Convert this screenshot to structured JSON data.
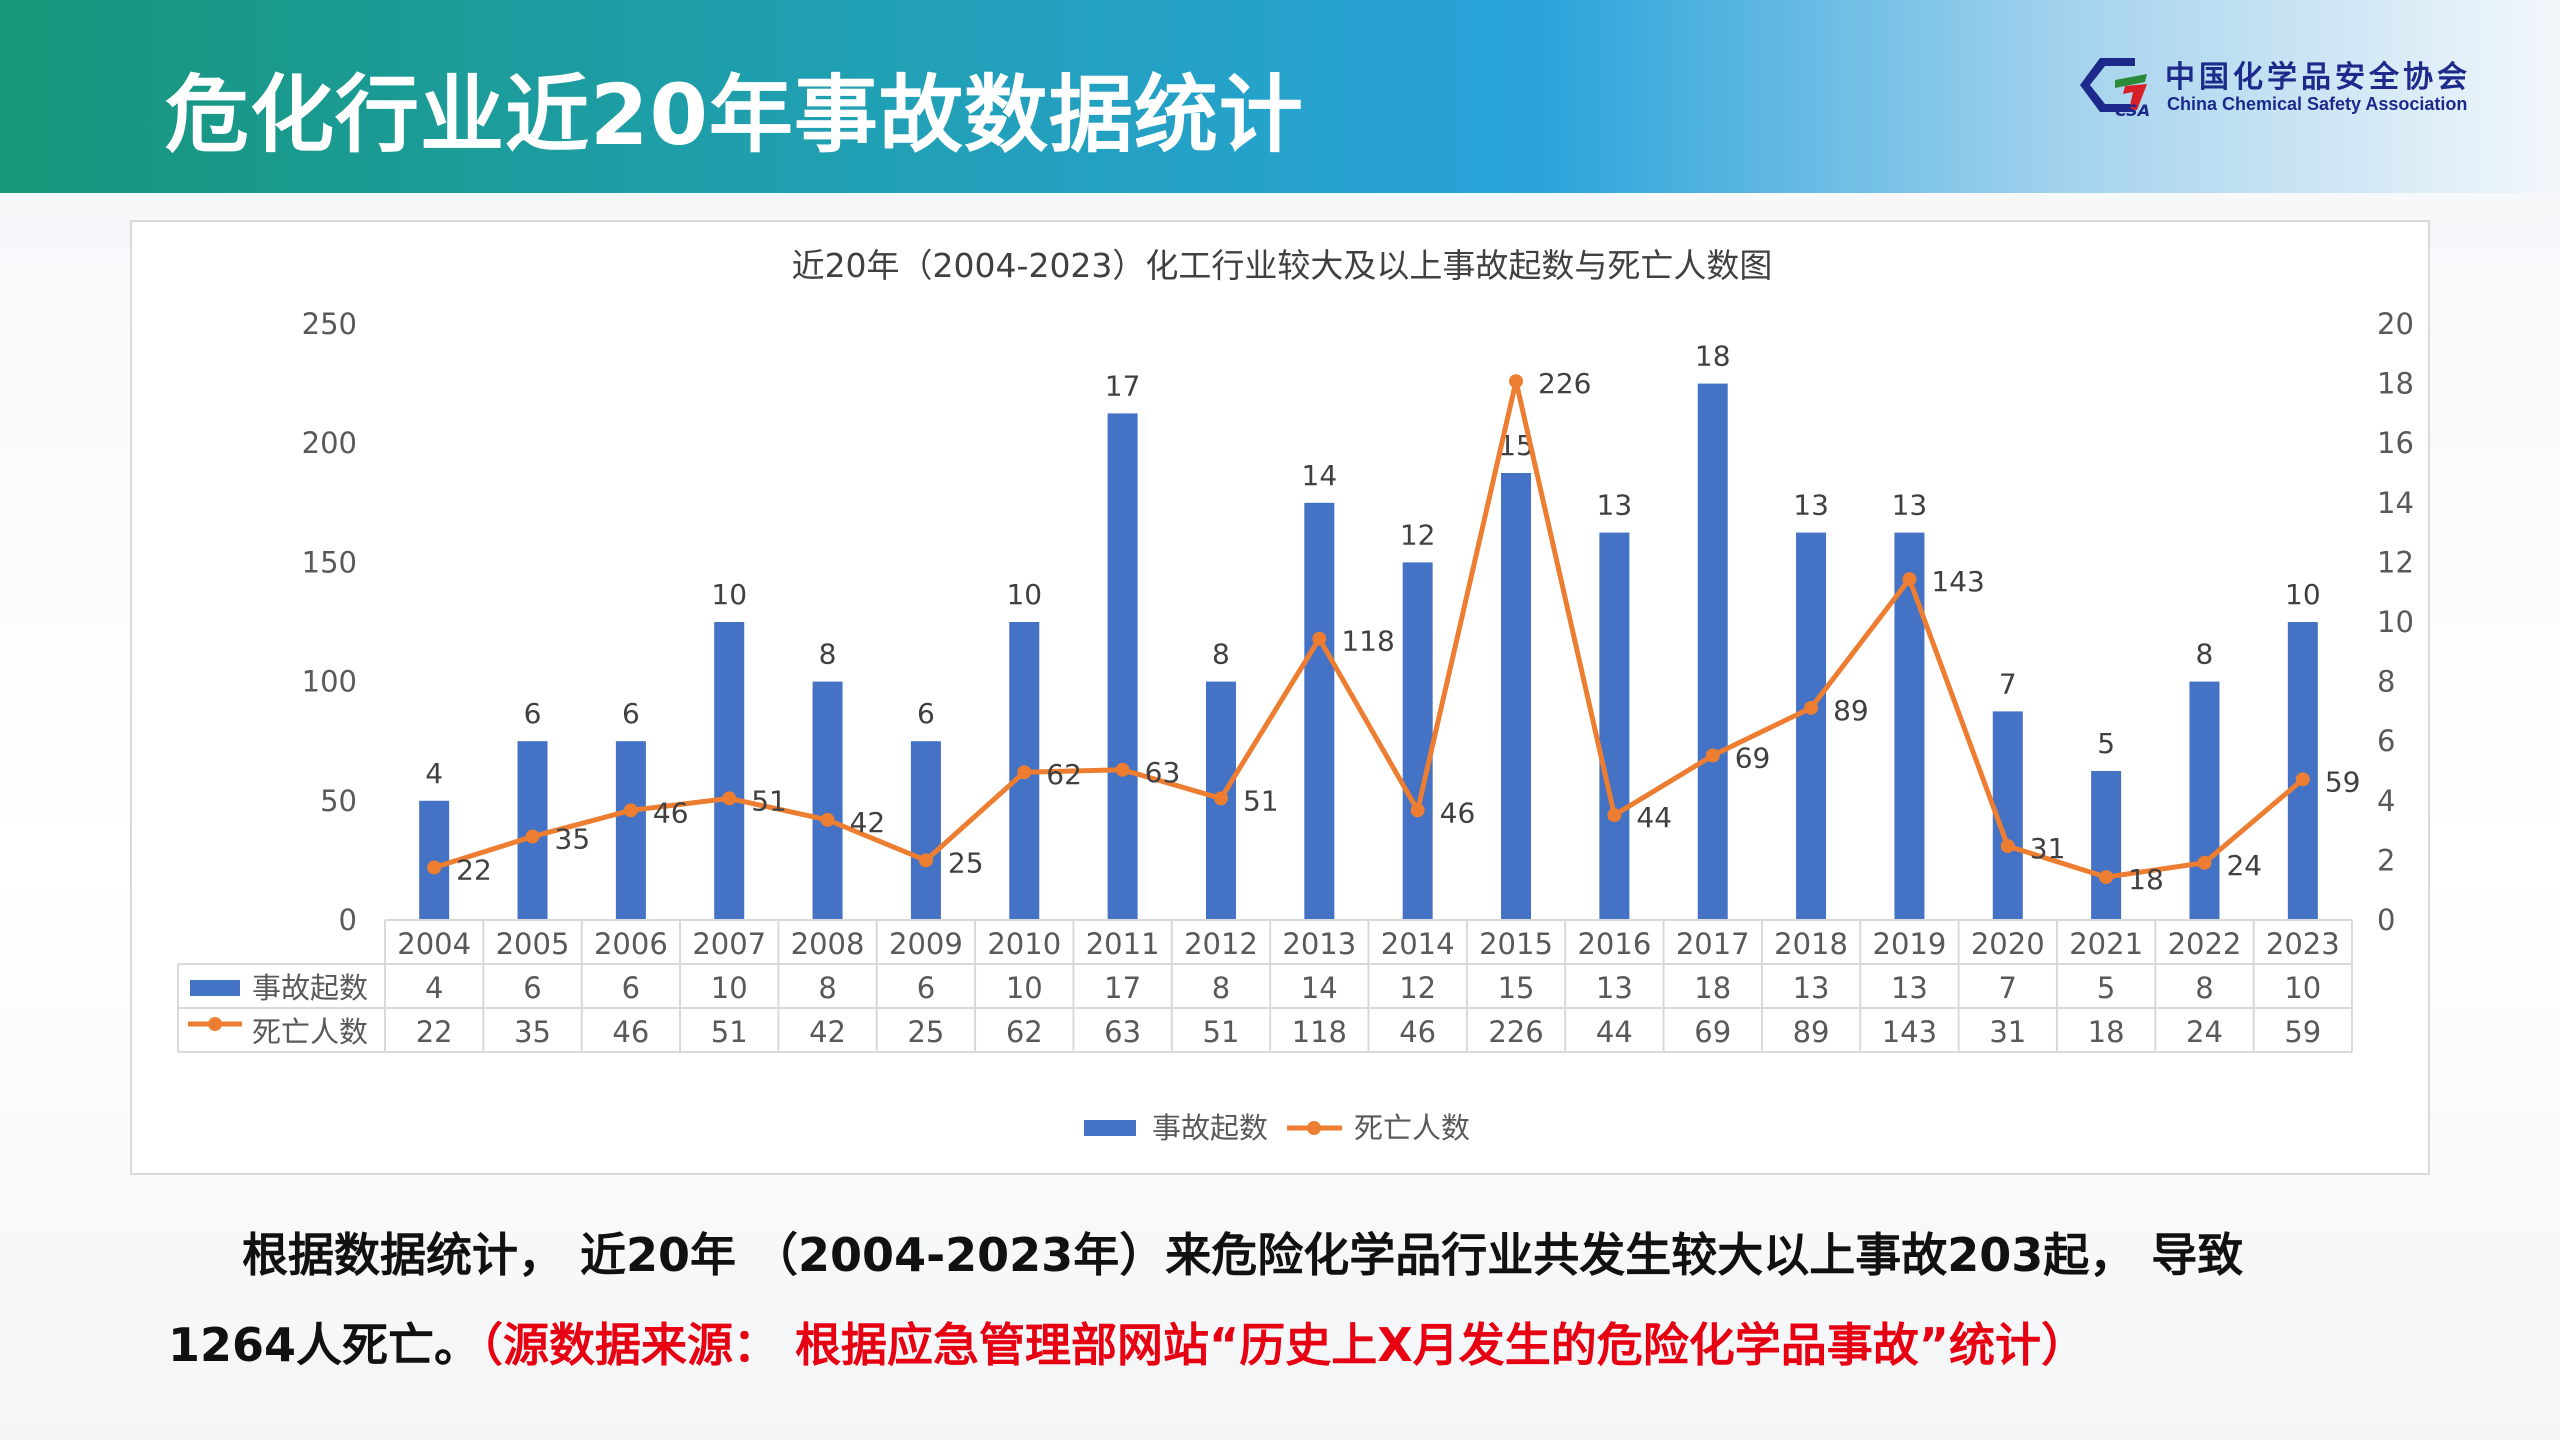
{
  "header": {
    "title": "危化行业近20年事故数据统计",
    "logo_cn": "中国化学品安全协会",
    "logo_en": "China Chemical Safety Association",
    "logo_mark": "CSA"
  },
  "colors": {
    "bar": "#4472C4",
    "line": "#ED7D31"
  },
  "chart_data": {
    "type": "bar+line",
    "title": "近20年（2004-2023）化工行业较大及以上事故起数与死亡人数图",
    "categories": [
      "2004",
      "2005",
      "2006",
      "2007",
      "2008",
      "2009",
      "2010",
      "2011",
      "2012",
      "2013",
      "2014",
      "2015",
      "2016",
      "2017",
      "2018",
      "2019",
      "2020",
      "2021",
      "2022",
      "2023"
    ],
    "series": [
      {
        "name": "事故起数",
        "type": "bar",
        "axis": "right",
        "values": [
          4,
          6,
          6,
          10,
          8,
          6,
          10,
          17,
          8,
          14,
          12,
          15,
          13,
          18,
          13,
          13,
          7,
          5,
          8,
          10
        ]
      },
      {
        "name": "死亡人数",
        "type": "line",
        "axis": "left",
        "values": [
          22,
          35,
          46,
          51,
          42,
          25,
          62,
          63,
          51,
          118,
          46,
          226,
          44,
          69,
          89,
          143,
          31,
          18,
          24,
          59
        ]
      }
    ],
    "left_axis": {
      "ylim": [
        0,
        250
      ],
      "ticks": [
        "0",
        "50",
        "100",
        "150",
        "200",
        "250"
      ]
    },
    "right_axis": {
      "ylim": [
        0,
        20
      ],
      "ticks": [
        "0",
        "2",
        "4",
        "6",
        "8",
        "10",
        "12",
        "14",
        "16",
        "18",
        "20"
      ]
    },
    "legend": "bottom",
    "data_table": true
  },
  "text": {
    "line1": "根据数据统计， 近20年 （2004-2023年）来危险化学品行业共发生较大以上事故203起， 导致",
    "line2": "1264人死亡。",
    "source": "（源数据来源： 根据应急管理部网站“历史上X月发生的危险化学品事故”统计）"
  }
}
